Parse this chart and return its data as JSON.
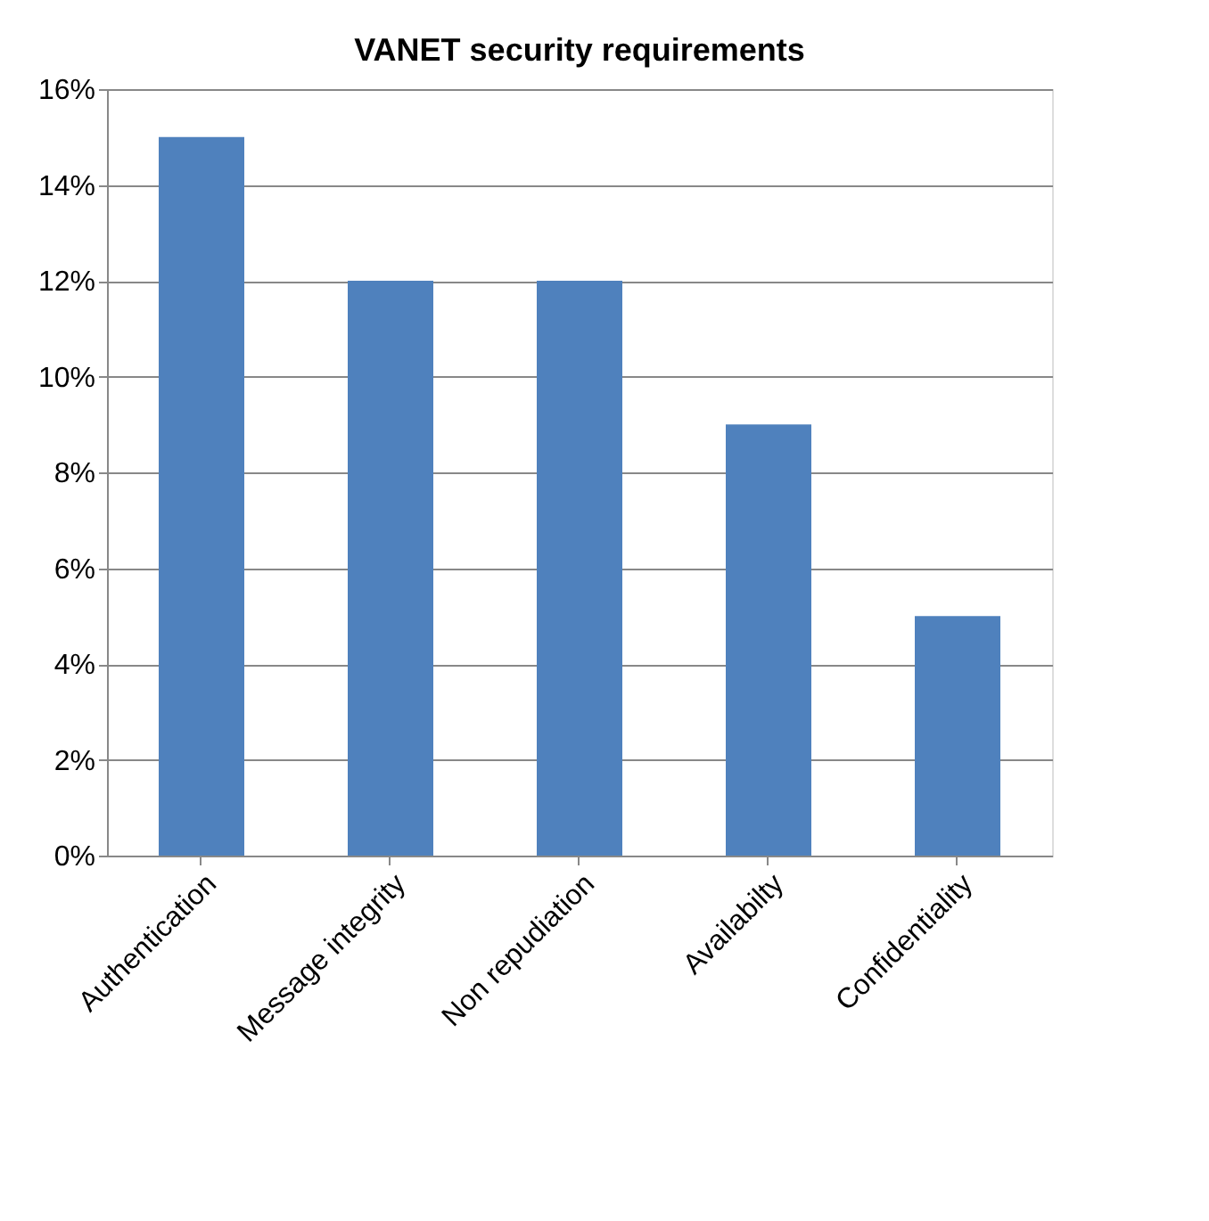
{
  "chart_data": {
    "type": "bar",
    "title": "VANET security requirements",
    "categories": [
      "Authentication",
      "Message integrity",
      "Non repudiation",
      "Availabilty",
      "Confidentiality"
    ],
    "values": [
      15,
      12,
      12,
      9,
      5
    ],
    "color": "#4f81bd",
    "ylim": [
      0,
      16
    ],
    "yticks": [
      {
        "value": 0,
        "label": "0%"
      },
      {
        "value": 2,
        "label": "2%"
      },
      {
        "value": 4,
        "label": "4%"
      },
      {
        "value": 6,
        "label": "6%"
      },
      {
        "value": 8,
        "label": "8%"
      },
      {
        "value": 10,
        "label": "10%"
      },
      {
        "value": 12,
        "label": "12%"
      },
      {
        "value": 14,
        "label": "14%"
      },
      {
        "value": 16,
        "label": "16%"
      }
    ],
    "grid": "y"
  }
}
